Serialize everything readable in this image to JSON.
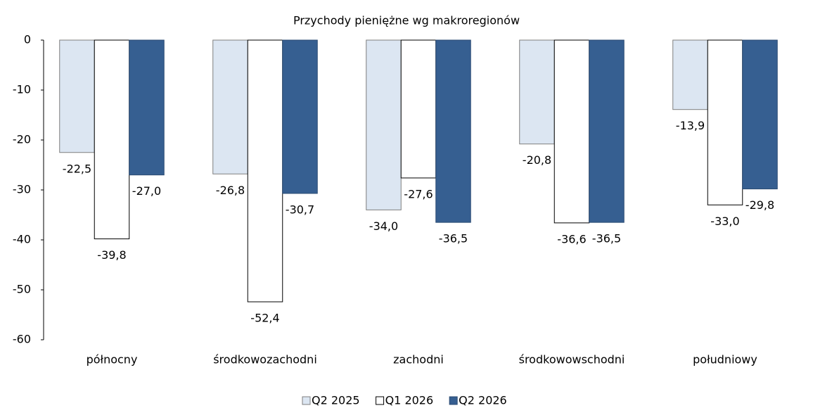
{
  "chart_data": {
    "type": "bar",
    "title": "Przychody pieniężne wg makroregionów",
    "categories": [
      "północny",
      "środkowozachodni",
      "zachodni",
      "środkowowschodni",
      "południowy"
    ],
    "series": [
      {
        "name": "Q2 2025",
        "color": "#dce6f2",
        "values": [
          -22.5,
          -26.8,
          -34.0,
          -20.8,
          -13.9
        ],
        "value_labels": [
          "-22,5",
          "-26,8",
          "-34,0",
          "-20,8",
          "-13,9"
        ]
      },
      {
        "name": "Q1 2026",
        "color": "#ffffff",
        "values": [
          -39.8,
          -52.4,
          -27.6,
          -36.6,
          -33.0
        ],
        "value_labels": [
          "-39,8",
          "-52,4",
          "-27,6",
          "-36,6",
          "-33,0"
        ]
      },
      {
        "name": "Q2 2026",
        "color": "#365f91",
        "values": [
          -27.0,
          -30.7,
          -36.5,
          -36.5,
          -29.8
        ],
        "value_labels": [
          "-27,0",
          "-30,7",
          "-36,5",
          "-36,5",
          "-29,8"
        ]
      }
    ],
    "ylim": [
      -60,
      0
    ],
    "yticks": [
      0,
      -10,
      -20,
      -30,
      -40,
      -50,
      -60
    ],
    "legend": "bottom"
  }
}
